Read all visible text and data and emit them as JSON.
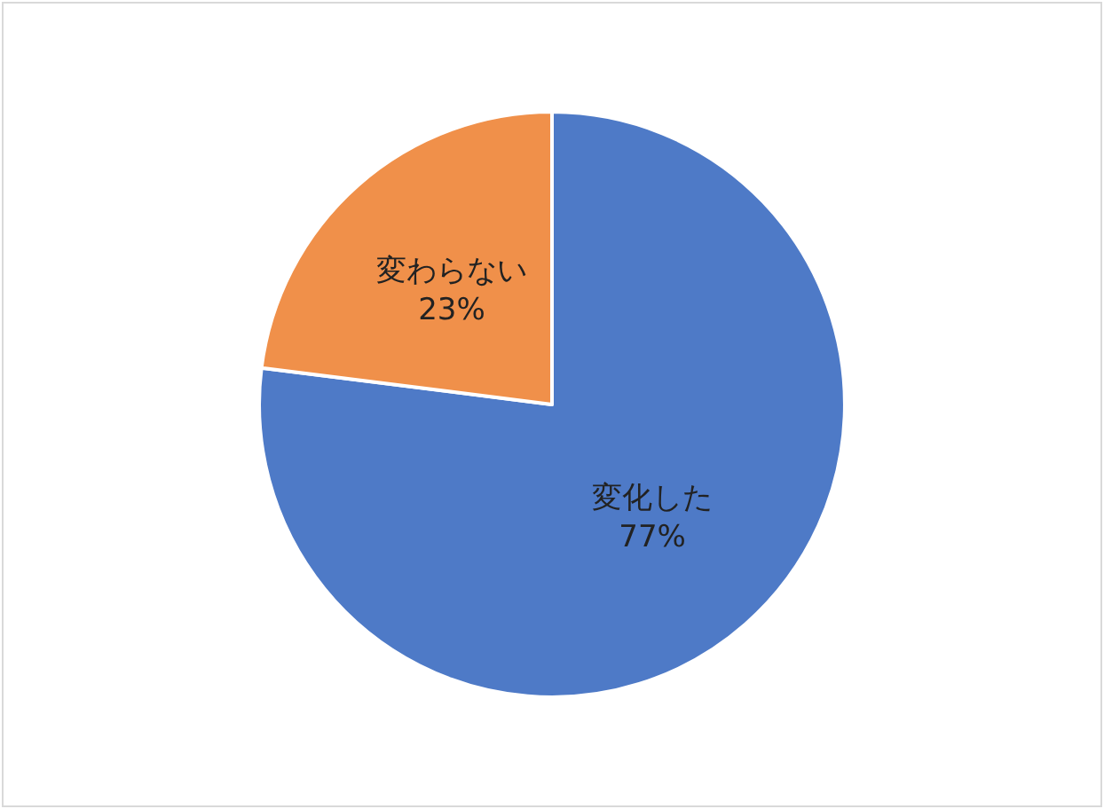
{
  "chart_data": {
    "type": "pie",
    "categories": [
      "変化した",
      "変わらない"
    ],
    "values": [
      77,
      23
    ],
    "colors": [
      "#4e7ac7",
      "#f0904a"
    ],
    "value_labels": [
      "77%",
      "23%"
    ],
    "legend": false
  }
}
